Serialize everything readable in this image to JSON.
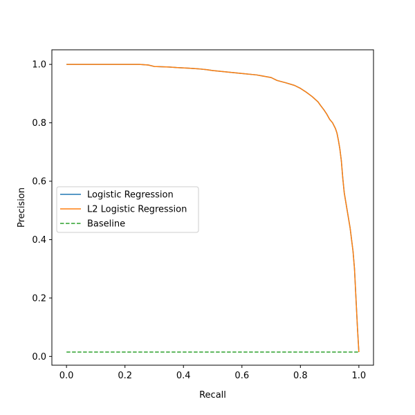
{
  "chart_data": {
    "type": "line",
    "title": "",
    "xlabel": "Recall",
    "ylabel": "Precision",
    "xlim": [
      -0.05,
      1.05
    ],
    "ylim": [
      -0.03,
      1.05
    ],
    "x_ticks": [
      0.0,
      0.2,
      0.4,
      0.6,
      0.8,
      1.0
    ],
    "x_tick_labels": [
      "0.0",
      "0.2",
      "0.4",
      "0.6",
      "0.8",
      "1.0"
    ],
    "y_ticks": [
      0.0,
      0.2,
      0.4,
      0.6,
      0.8,
      1.0
    ],
    "y_tick_labels": [
      "0.0",
      "0.2",
      "0.4",
      "0.6",
      "0.8",
      "1.0"
    ],
    "grid": false,
    "legend_position": "center-left",
    "series": [
      {
        "name": "Logistic Regression",
        "color": "#1f77b4",
        "style": "solid",
        "x": [
          0.0,
          0.1,
          0.2,
          0.25,
          0.28,
          0.3,
          0.35,
          0.38,
          0.42,
          0.45,
          0.48,
          0.5,
          0.55,
          0.6,
          0.65,
          0.7,
          0.72,
          0.75,
          0.78,
          0.8,
          0.82,
          0.84,
          0.86,
          0.87,
          0.88,
          0.89,
          0.9,
          0.91,
          0.92,
          0.925,
          0.93,
          0.935,
          0.94,
          0.945,
          0.95,
          0.96,
          0.97,
          0.98,
          0.985,
          0.99,
          0.995,
          1.0
        ],
        "y": [
          1.0,
          1.0,
          1.0,
          1.0,
          0.998,
          0.993,
          0.991,
          0.989,
          0.987,
          0.985,
          0.982,
          0.979,
          0.974,
          0.969,
          0.964,
          0.955,
          0.945,
          0.937,
          0.928,
          0.918,
          0.905,
          0.89,
          0.872,
          0.858,
          0.845,
          0.83,
          0.812,
          0.8,
          0.78,
          0.765,
          0.74,
          0.71,
          0.67,
          0.61,
          0.56,
          0.5,
          0.44,
          0.36,
          0.3,
          0.2,
          0.1,
          0.015
        ]
      },
      {
        "name": "L2 Logistic Regression",
        "color": "#ff7f0e",
        "style": "solid",
        "x": [
          0.0,
          0.1,
          0.2,
          0.25,
          0.28,
          0.3,
          0.35,
          0.38,
          0.42,
          0.45,
          0.48,
          0.5,
          0.55,
          0.6,
          0.65,
          0.7,
          0.72,
          0.75,
          0.78,
          0.8,
          0.82,
          0.84,
          0.86,
          0.87,
          0.88,
          0.89,
          0.9,
          0.91,
          0.92,
          0.925,
          0.93,
          0.935,
          0.94,
          0.945,
          0.95,
          0.96,
          0.97,
          0.98,
          0.985,
          0.99,
          0.995,
          1.0
        ],
        "y": [
          1.0,
          1.0,
          1.0,
          1.0,
          0.998,
          0.993,
          0.991,
          0.989,
          0.987,
          0.985,
          0.982,
          0.979,
          0.974,
          0.969,
          0.964,
          0.955,
          0.945,
          0.937,
          0.928,
          0.918,
          0.905,
          0.89,
          0.872,
          0.858,
          0.845,
          0.83,
          0.812,
          0.8,
          0.78,
          0.765,
          0.74,
          0.71,
          0.67,
          0.61,
          0.56,
          0.5,
          0.44,
          0.36,
          0.3,
          0.2,
          0.1,
          0.015
        ]
      },
      {
        "name": "Baseline",
        "color": "#2ca02c",
        "style": "dashed",
        "x": [
          0.0,
          1.0
        ],
        "y": [
          0.015,
          0.015
        ]
      }
    ]
  }
}
